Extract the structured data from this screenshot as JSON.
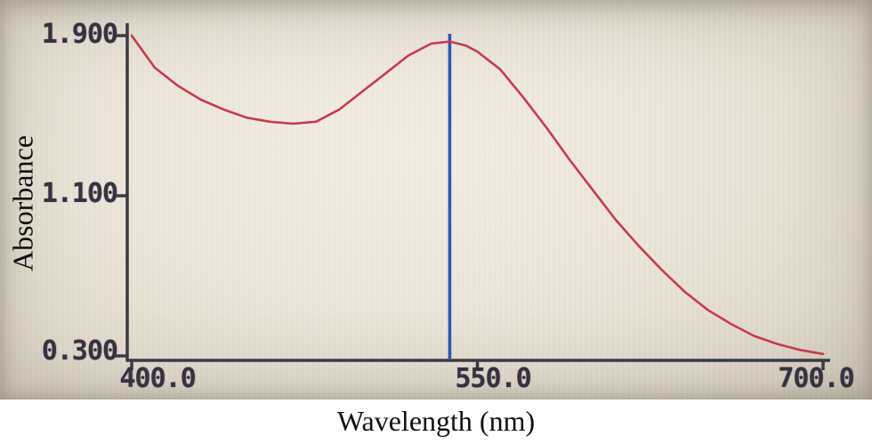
{
  "figure": {
    "description": "Photograph of a spectrophotometer screen showing an absorbance spectrum with a peak marker line"
  },
  "colors": {
    "curve_red": "#c53b4e",
    "marker_blue": "#2f54b8",
    "axis_dark": "#3b3a44",
    "screen_beige": "#ebe5da"
  },
  "chart_data": {
    "type": "line",
    "title": "",
    "xlabel": "Wavelength (nm)",
    "ylabel": "Absorbance",
    "xlim": [
      400,
      700
    ],
    "ylim": [
      0.3,
      1.9
    ],
    "grid": false,
    "legend": false,
    "x_ticks": [
      400,
      550,
      700
    ],
    "x_tick_labels": [
      "400.0",
      "550.0",
      "700.0"
    ],
    "y_ticks": [
      1.9,
      1.1,
      0.3
    ],
    "y_tick_labels": [
      "1.900",
      "1.100",
      "0.300"
    ],
    "peak_marker": {
      "x": 538,
      "color": "#2f54b8"
    },
    "series": [
      {
        "name": "absorbance-spectrum",
        "color": "#c53b4e",
        "x": [
          400,
          410,
          420,
          430,
          440,
          450,
          460,
          470,
          480,
          490,
          500,
          510,
          520,
          530,
          538,
          545,
          550,
          560,
          570,
          580,
          590,
          600,
          610,
          620,
          630,
          640,
          650,
          660,
          670,
          680,
          690,
          700
        ],
        "y": [
          1.9,
          1.74,
          1.65,
          1.58,
          1.53,
          1.49,
          1.47,
          1.46,
          1.47,
          1.53,
          1.62,
          1.71,
          1.8,
          1.86,
          1.87,
          1.85,
          1.82,
          1.73,
          1.59,
          1.44,
          1.28,
          1.13,
          0.98,
          0.85,
          0.73,
          0.62,
          0.53,
          0.46,
          0.4,
          0.36,
          0.33,
          0.31
        ]
      }
    ]
  }
}
